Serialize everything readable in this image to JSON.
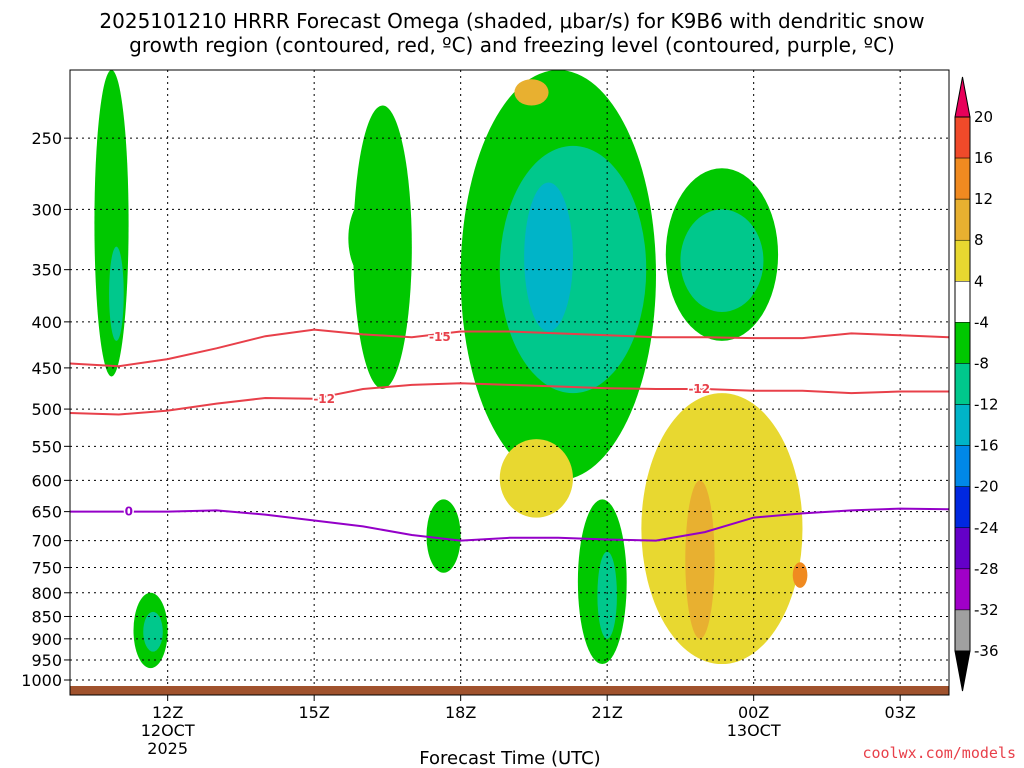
{
  "title_line1": "2025101210 HRRR Forecast Omega (shaded, μbar/s) for K9B6 with dendritic snow",
  "title_line2": "growth region (contoured, red, ºC) and freezing level (contoured, purple, ºC)",
  "credit": "coolwx.com/models",
  "chart_data": {
    "type": "heatmap",
    "title": "2025101210 HRRR Forecast Omega (shaded, μbar/s) for K9B6 with dendritic snow growth region (contoured, red, ºC) and freezing level (contoured, purple, ºC)",
    "xlabel": "Forecast Time (UTC)",
    "ylabel": "",
    "x_start": "2025-10-12T10:00Z",
    "x_range_hours": [
      0,
      18
    ],
    "y_scale": "log",
    "ylim_hpa": [
      1000,
      210
    ],
    "y_ticks": [
      250,
      300,
      350,
      400,
      450,
      500,
      550,
      600,
      650,
      700,
      750,
      800,
      850,
      900,
      950,
      1000
    ],
    "x_ticks": [
      {
        "hour": 2,
        "label": "12Z",
        "sub": [
          "12OCT",
          "2025"
        ]
      },
      {
        "hour": 5,
        "label": "15Z",
        "sub": []
      },
      {
        "hour": 8,
        "label": "18Z",
        "sub": []
      },
      {
        "hour": 11,
        "label": "21Z",
        "sub": []
      },
      {
        "hour": 14,
        "label": "00Z",
        "sub": [
          "13OCT"
        ]
      },
      {
        "hour": 17,
        "label": "03Z",
        "sub": []
      }
    ],
    "colorbar": {
      "levels": [
        20,
        16,
        12,
        8,
        4,
        -4,
        -8,
        -12,
        -16,
        -20,
        -24,
        -28,
        -32,
        -36
      ],
      "colors": [
        "#e8005a",
        "#f04a2a",
        "#f08a20",
        "#e8b030",
        "#e8d830",
        "#ffffff",
        "#00c800",
        "#00c88c",
        "#00b4c8",
        "#0088e8",
        "#0028e0",
        "#6400c8",
        "#a000c8",
        "#a0a0a0",
        "#000000"
      ]
    },
    "omega_regions": [
      {
        "level": -4,
        "color": "#00c800",
        "hours": [
          0.5,
          1.2
        ],
        "p": [
          460,
          210
        ]
      },
      {
        "level": -8,
        "color": "#00c88c",
        "hours": [
          0.8,
          1.1
        ],
        "p": [
          420,
          330
        ]
      },
      {
        "level": -4,
        "color": "#00c800",
        "hours": [
          5.7,
          6.6
        ],
        "p": [
          360,
          290
        ]
      },
      {
        "level": -4,
        "color": "#00c800",
        "hours": [
          5.8,
          7.0
        ],
        "p": [
          475,
          230
        ]
      },
      {
        "level": -4,
        "color": "#00c800",
        "hours": [
          8.0,
          12.0
        ],
        "p": [
          600,
          210
        ]
      },
      {
        "level": -8,
        "color": "#00c88c",
        "hours": [
          8.8,
          11.8
        ],
        "p": [
          480,
          255
        ]
      },
      {
        "level": -12,
        "color": "#00b4c8",
        "hours": [
          9.3,
          10.3
        ],
        "p": [
          410,
          280
        ]
      },
      {
        "level": -4,
        "color": "#00c800",
        "hours": [
          12.2,
          14.5
        ],
        "p": [
          420,
          270
        ]
      },
      {
        "level": -8,
        "color": "#00c88c",
        "hours": [
          12.5,
          14.2
        ],
        "p": [
          390,
          300
        ]
      },
      {
        "level": -4,
        "color": "#00c800",
        "hours": [
          10.4,
          11.4
        ],
        "p": [
          960,
          630
        ]
      },
      {
        "level": -8,
        "color": "#00c88c",
        "hours": [
          10.8,
          11.2
        ],
        "p": [
          900,
          720
        ]
      },
      {
        "level": -4,
        "color": "#00c800",
        "hours": [
          7.3,
          8.0
        ],
        "p": [
          760,
          630
        ]
      },
      {
        "level": -4,
        "color": "#00c800",
        "hours": [
          1.3,
          2.0
        ],
        "p": [
          970,
          800
        ]
      },
      {
        "level": -8,
        "color": "#00c88c",
        "hours": [
          1.5,
          1.9
        ],
        "p": [
          930,
          840
        ]
      },
      {
        "level": 4,
        "color": "#e8d830",
        "hours": [
          8.8,
          10.3
        ],
        "p": [
          660,
          540
        ]
      },
      {
        "level": 4,
        "color": "#e8d830",
        "hours": [
          11.7,
          15.0
        ],
        "p": [
          960,
          480
        ]
      },
      {
        "level": 8,
        "color": "#e8b030",
        "hours": [
          12.6,
          13.2
        ],
        "p": [
          900,
          600
        ]
      },
      {
        "level": 12,
        "color": "#f08a20",
        "hours": [
          14.8,
          15.1
        ],
        "p": [
          790,
          740
        ]
      },
      {
        "level": 8,
        "color": "#e8b030",
        "hours": [
          9.1,
          9.8
        ],
        "p": [
          230,
          215
        ]
      }
    ],
    "series": [
      {
        "name": "-15",
        "kind": "dendritic snow growth (red)",
        "x_hours": [
          0,
          1,
          2,
          3,
          4,
          5,
          6,
          7,
          8,
          9,
          10,
          11,
          12,
          13,
          14,
          15,
          16,
          17,
          18
        ],
        "p_hpa": [
          445,
          448,
          440,
          428,
          415,
          408,
          413,
          416,
          410,
          410,
          412,
          414,
          416,
          416,
          417,
          417,
          412,
          414,
          416
        ]
      },
      {
        "name": "-12",
        "kind": "dendritic snow growth (red)",
        "x_hours": [
          0,
          1,
          2,
          3,
          4,
          5,
          6,
          7,
          8,
          9,
          10,
          11,
          12,
          13,
          14,
          15,
          16,
          17,
          18
        ],
        "p_hpa": [
          505,
          507,
          502,
          493,
          486,
          487,
          475,
          470,
          468,
          470,
          472,
          474,
          475,
          475,
          477,
          477,
          480,
          478,
          478
        ]
      },
      {
        "name": "0",
        "kind": "freezing level (purple)",
        "x_hours": [
          0,
          1,
          2,
          3,
          4,
          5,
          6,
          7,
          8,
          9,
          10,
          11,
          12,
          13,
          14,
          15,
          16,
          17,
          18
        ],
        "p_hpa": [
          650,
          650,
          650,
          648,
          655,
          665,
          675,
          690,
          700,
          695,
          695,
          698,
          700,
          685,
          660,
          653,
          648,
          645,
          646
        ]
      }
    ]
  }
}
